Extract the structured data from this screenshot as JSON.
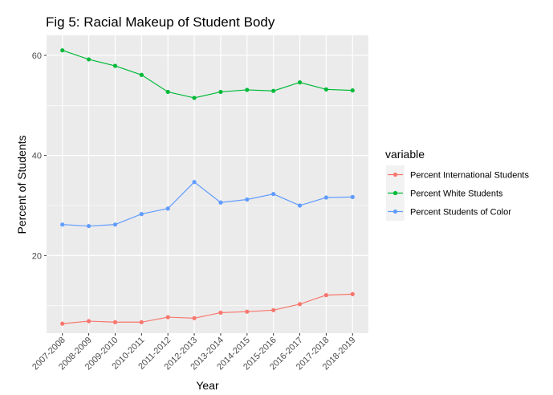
{
  "chart_data": {
    "type": "line",
    "title": "Fig 5: Racial Makeup of Student Body",
    "xlabel": "Year",
    "ylabel": "Percent of Students",
    "categories": [
      "2007-2008",
      "2008-2009",
      "2009-2010",
      "2010-2011",
      "2011-2012",
      "2012-2013",
      "2013-2014",
      "2014-2015",
      "2015-2016",
      "2016-2017",
      "2017-2018",
      "2018-2019"
    ],
    "y_ticks": [
      20,
      40,
      60
    ],
    "ylim": [
      4.5,
      64
    ],
    "grid": true,
    "legend": {
      "title": "variable",
      "placement": "right"
    },
    "series": [
      {
        "name": "Percent International Students",
        "color": "#f8766d",
        "values": [
          6.4,
          6.9,
          6.7,
          6.7,
          7.7,
          7.5,
          8.6,
          8.8,
          9.1,
          10.3,
          12.1,
          12.3
        ]
      },
      {
        "name": "Percent White Students",
        "color": "#00ba38",
        "values": [
          61.0,
          59.2,
          57.9,
          56.1,
          52.7,
          51.5,
          52.7,
          53.1,
          52.9,
          54.6,
          53.2,
          53.0
        ]
      },
      {
        "name": "Percent Students of Color",
        "color": "#619cff",
        "values": [
          26.2,
          25.9,
          26.2,
          28.3,
          29.4,
          34.7,
          30.6,
          31.2,
          32.3,
          30.0,
          31.6,
          31.7
        ]
      }
    ]
  }
}
